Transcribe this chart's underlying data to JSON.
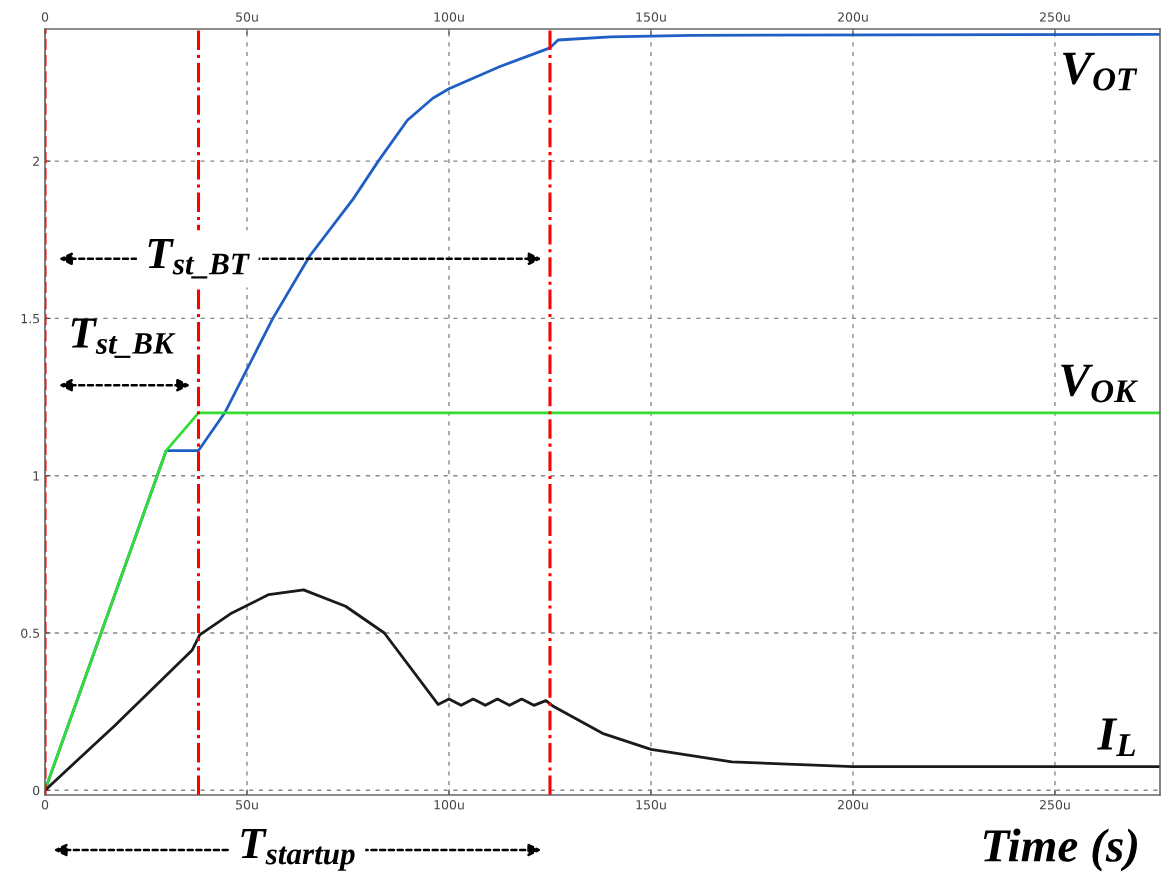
{
  "chart_data": {
    "type": "line",
    "xlabel": "Time (s)",
    "x": [
      0,
      30,
      38,
      44.5,
      56.4,
      65.6,
      76.3,
      82.5,
      89.7,
      96,
      100,
      112.5,
      125,
      127,
      140,
      160,
      276
    ],
    "series": [
      {
        "name": "V$_{OT}$",
        "color": "#1f5fc4",
        "values": [
          0,
          1.08,
          1.08,
          1.2,
          1.5,
          1.7,
          1.88,
          2.0,
          2.13,
          2.2,
          2.23,
          2.3,
          2.36,
          2.385,
          2.395,
          2.4,
          2.403
        ]
      },
      {
        "name": "V$_{OK}$",
        "color": "#33dd33",
        "x": [
          0,
          30,
          38,
          276
        ],
        "values": [
          0,
          1.08,
          1.2,
          1.2
        ]
      },
      {
        "name": "I$_{L}$",
        "color": "#1a1a1a",
        "x": [
          0,
          17.3,
          36.4,
          38.3,
          45.9,
          55.4,
          64,
          74.4,
          84,
          97.3,
          100,
          103,
          106,
          109,
          112,
          115,
          118,
          121,
          124,
          125.8,
          138,
          150,
          170,
          200,
          276
        ],
        "values": [
          0,
          0.206,
          0.445,
          0.494,
          0.561,
          0.622,
          0.637,
          0.585,
          0.5,
          0.273,
          0.29,
          0.27,
          0.29,
          0.27,
          0.29,
          0.27,
          0.29,
          0.27,
          0.285,
          0.267,
          0.181,
          0.13,
          0.09,
          0.075,
          0.075
        ]
      }
    ],
    "xlim": [
      0,
      276
    ],
    "xticks": [
      0,
      {
        "value": 50,
        "label": "50u"
      },
      {
        "value": 100,
        "label": "100u"
      },
      {
        "value": 150,
        "label": "150u"
      },
      {
        "value": 200,
        "label": "200u"
      },
      {
        "value": 250,
        "label": "250u"
      }
    ],
    "x2lim": [
      0,
      276
    ],
    "x2ticks": [
      0,
      {
        "value": 50,
        "label": "50u"
      },
      {
        "value": 100,
        "label": "100u"
      },
      {
        "value": 150,
        "label": "150u"
      },
      {
        "value": 200,
        "label": "200u"
      },
      {
        "value": 250,
        "label": "250u"
      }
    ],
    "ylim": [
      -0.015,
      2.42
    ],
    "yticks": [
      0,
      0.5,
      1,
      1.5,
      2
    ],
    "grid": true,
    "legend": false,
    "marker": "none",
    "line_style": "solid",
    "ref_lines": [
      {
        "axis": "x",
        "value": 0,
        "color": "#ff0000",
        "line_style": "dashed"
      },
      {
        "axis": "x",
        "value": 38,
        "color": "#ff0000",
        "line_style": "dashdot"
      },
      {
        "axis": "x",
        "value": 125,
        "color": "#ff0000",
        "line_style": "dashdot"
      }
    ],
    "annotations": [
      "T$_{st_BT}$",
      "T$_{st_BK}$",
      "T$_{startup}$"
    ]
  }
}
